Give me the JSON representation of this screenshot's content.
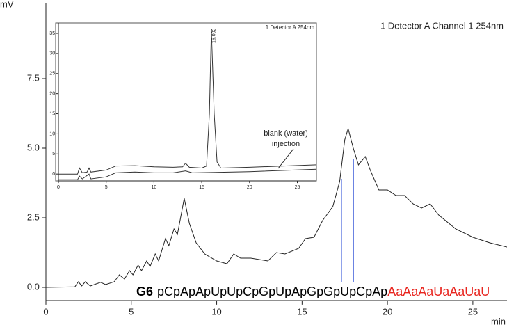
{
  "chart_data": [
    {
      "type": "line",
      "x_label": "min",
      "y_label": "mV",
      "annotations": [
        "1 Detector A Channel 1 254nm"
      ],
      "sequence": [
        {
          "text": "G6",
          "bold": true,
          "color": "#000000"
        },
        {
          "text": "pCpApApUpUpCpGpUpApGpGpUpCpAp",
          "bold": false,
          "color": "#000000"
        },
        {
          "text": "AaAaAaUaAaUaU",
          "bold": false,
          "color": "#e8251f"
        }
      ],
      "xlim": [
        0,
        27
      ],
      "xticks": [
        0,
        5,
        10,
        15,
        20,
        25
      ],
      "ylim": [
        -0.475,
        10.2
      ],
      "yticks": [
        {
          "value": 0,
          "label": "0.0"
        },
        {
          "value": 2.5,
          "label": "2.5"
        },
        {
          "value": 5,
          "label": "5.0"
        },
        {
          "value": 7.5,
          "label": "7.5"
        }
      ],
      "series": [
        {
          "color": "#222222",
          "x": [
            0,
            1.7,
            1.9,
            2.1,
            2.3,
            2.6,
            3.2,
            3.5,
            4,
            4.3,
            4.6,
            4.9,
            5.1,
            5.4,
            5.6,
            5.9,
            6.1,
            6.4,
            6.6,
            7.0,
            7.2,
            7.5,
            7.7,
            8.1,
            8.4,
            8.8,
            9.3,
            10,
            10.6,
            11,
            11.4,
            12,
            13,
            13.5,
            14,
            14.8,
            15.2,
            15.7,
            16.2,
            16.8,
            17.2,
            17.5,
            17.7,
            18.0,
            18.3,
            18.7,
            19.0,
            19.5,
            20,
            20.5,
            21,
            21.5,
            22,
            22.5,
            23,
            24,
            25,
            26,
            27
          ],
          "values": [
            0,
            0.02,
            0.2,
            0.05,
            0.2,
            0.05,
            0.18,
            0.1,
            0.2,
            0.45,
            0.3,
            0.6,
            0.45,
            0.8,
            0.6,
            0.95,
            0.75,
            1.2,
            0.95,
            1.75,
            1.5,
            2.1,
            1.9,
            3.2,
            2.3,
            1.6,
            1.2,
            0.95,
            0.85,
            1.2,
            1.05,
            1.05,
            0.95,
            1.25,
            1.2,
            1.4,
            1.75,
            1.8,
            2.4,
            2.9,
            3.8,
            5.3,
            5.7,
            5.0,
            4.4,
            4.7,
            4.2,
            3.5,
            3.5,
            3.3,
            3.3,
            3.0,
            2.85,
            3.0,
            2.6,
            2.1,
            1.8,
            1.6,
            1.45
          ]
        }
      ],
      "markers": {
        "color": "#3a5ad8",
        "x": [
          17.3,
          18.0
        ]
      }
    },
    {
      "type": "line",
      "annotations": [
        "1 Detector A 254nm",
        "16.002",
        "blank (water)",
        "injection"
      ],
      "xlim": [
        0,
        27
      ],
      "xticks": [
        0,
        5,
        10,
        15,
        20,
        25
      ],
      "ylim": [
        -1.7,
        37.6
      ],
      "yticks": [
        0,
        5,
        10,
        15,
        20,
        25,
        30,
        35
      ],
      "series": [
        {
          "color": "#333333",
          "x": [
            0,
            2,
            2.2,
            2.5,
            3,
            3.2,
            3.4,
            5,
            6,
            8,
            10,
            12,
            13,
            13.3,
            13.7,
            15,
            15.5,
            15.8,
            16.0,
            16.3,
            16.6,
            17,
            20,
            27
          ],
          "values": [
            0,
            0,
            1.5,
            0.3,
            0.5,
            1.5,
            0.5,
            1,
            2,
            2.1,
            1.8,
            1.7,
            1.8,
            2.7,
            1.7,
            1.5,
            2,
            15,
            36,
            15,
            3,
            1.5,
            1.7,
            2.3
          ]
        },
        {
          "color": "#333333",
          "x": [
            0,
            2,
            2.2,
            2.5,
            3.2,
            3.4,
            5,
            6,
            8,
            10,
            12,
            13.3,
            14,
            16,
            20,
            27
          ],
          "values": [
            -1.4,
            -1.4,
            -0.5,
            -1.2,
            0,
            -1.2,
            -0.7,
            0.3,
            0.5,
            0.3,
            0.3,
            0.8,
            0.3,
            0.4,
            0.6,
            1.2
          ]
        }
      ]
    }
  ]
}
